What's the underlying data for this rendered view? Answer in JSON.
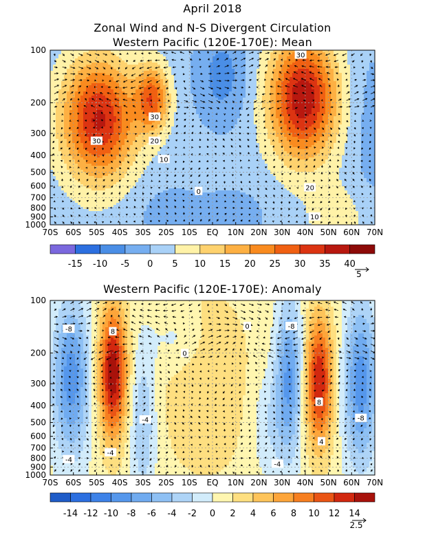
{
  "titles": {
    "month": "April 2018",
    "line1": "Zonal Wind and N-S Divergent Circulation",
    "mean_panel": "Western Pacific (120E-170E): Mean",
    "anom_panel": "Western Pacific (120E-170E): Anomaly"
  },
  "chart_data": [
    {
      "type": "heatmap",
      "panel": "mean",
      "title": "Western Pacific (120E-170E): Mean",
      "xlabel": "",
      "ylabel": "",
      "x_ticks": [
        "70S",
        "60S",
        "50S",
        "40S",
        "30S",
        "20S",
        "10S",
        "EQ",
        "10N",
        "20N",
        "30N",
        "40N",
        "50N",
        "60N",
        "70N"
      ],
      "x_values": [
        -70,
        -60,
        -50,
        -40,
        -30,
        -20,
        -10,
        0,
        10,
        20,
        30,
        40,
        50,
        60,
        70
      ],
      "xlim": [
        -70,
        70
      ],
      "y_ticks": [
        "100",
        "200",
        "300",
        "400",
        "500",
        "600",
        "700",
        "800",
        "900",
        "1000"
      ],
      "y_values": [
        100,
        200,
        300,
        400,
        500,
        600,
        700,
        800,
        900,
        1000
      ],
      "ylim": [
        1000,
        100
      ],
      "y_scale": "log",
      "grid": true,
      "colorbar": {
        "labels": [
          "-15",
          "-10",
          "-5",
          "0",
          "5",
          "10",
          "15",
          "20",
          "25",
          "30",
          "35",
          "40"
        ],
        "colors": [
          "#7b68de",
          "#2c6fe0",
          "#4a8ee6",
          "#76aef0",
          "#a9d1f7",
          "#fff2a8",
          "#fed26e",
          "#fdb043",
          "#f98b1f",
          "#f06012",
          "#dc3412",
          "#b8180f",
          "#8d0a08"
        ]
      },
      "vector_reference": "5",
      "contour_labels": [
        {
          "text": "30",
          "x": -50,
          "y": 330
        },
        {
          "text": "30",
          "x": -25,
          "y": 240
        },
        {
          "text": "20",
          "x": -25,
          "y": 330
        },
        {
          "text": "10",
          "x": -21,
          "y": 420
        },
        {
          "text": "30",
          "x": 38,
          "y": 106
        },
        {
          "text": "20",
          "x": 42,
          "y": 610
        },
        {
          "text": "10",
          "x": 44,
          "y": 895
        },
        {
          "text": "0",
          "x": -6,
          "y": 640
        }
      ]
    },
    {
      "type": "heatmap",
      "panel": "anomaly",
      "title": "Western Pacific (120E-170E): Anomaly",
      "xlabel": "",
      "ylabel": "",
      "x_ticks": [
        "70S",
        "60S",
        "50S",
        "40S",
        "30S",
        "20S",
        "10S",
        "EQ",
        "10N",
        "20N",
        "30N",
        "40N",
        "50N",
        "60N",
        "70N"
      ],
      "x_values": [
        -70,
        -60,
        -50,
        -40,
        -30,
        -20,
        -10,
        0,
        10,
        20,
        30,
        40,
        50,
        60,
        70
      ],
      "xlim": [
        -70,
        70
      ],
      "y_ticks": [
        "100",
        "200",
        "300",
        "400",
        "500",
        "600",
        "700",
        "800",
        "900",
        "1000"
      ],
      "y_values": [
        100,
        200,
        300,
        400,
        500,
        600,
        700,
        800,
        900,
        1000
      ],
      "ylim": [
        1000,
        100
      ],
      "y_scale": "log",
      "grid": true,
      "colorbar": {
        "labels": [
          "-14",
          "-12",
          "-10",
          "-8",
          "-6",
          "-4",
          "-2",
          "0",
          "2",
          "4",
          "6",
          "8",
          "10",
          "12",
          "14"
        ],
        "colors": [
          "#1f5cc8",
          "#2c6fe0",
          "#3d82e8",
          "#5597ec",
          "#70abf0",
          "#8ec0f4",
          "#aed4f7",
          "#d2ecfb",
          "#fff6b0",
          "#fedf80",
          "#fec45a",
          "#fda53a",
          "#f77f20",
          "#ea5515",
          "#d2280f",
          "#a8120b"
        ]
      },
      "vector_reference": "2.5",
      "contour_labels": [
        {
          "text": "-8",
          "x": -62,
          "y": 145
        },
        {
          "text": "8",
          "x": -43,
          "y": 150
        },
        {
          "text": "0",
          "x": 15,
          "y": 140
        },
        {
          "text": "0",
          "x": -12,
          "y": 200
        },
        {
          "text": "-8",
          "x": 34,
          "y": 140
        },
        {
          "text": "-4",
          "x": -29,
          "y": 480
        },
        {
          "text": "8",
          "x": 46,
          "y": 380
        },
        {
          "text": "-8",
          "x": 64,
          "y": 470
        },
        {
          "text": "-4",
          "x": -44,
          "y": 740
        },
        {
          "text": "-4",
          "x": -62,
          "y": 810
        },
        {
          "text": "4",
          "x": 47,
          "y": 640
        },
        {
          "text": "-4",
          "x": 28,
          "y": 860
        }
      ]
    }
  ]
}
